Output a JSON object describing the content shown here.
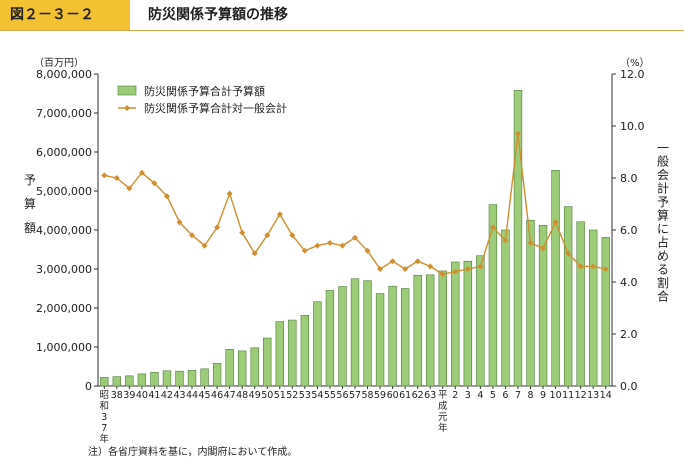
{
  "header": {
    "figure_number": "図２－３－２",
    "title": "防災関係予算額の推移"
  },
  "note": "注）各省庁資料を基に，内閣府において作成。",
  "chart_data": {
    "type": "bar",
    "left_unit": "（百万円）",
    "right_unit": "（%）",
    "ylabel_left": [
      "予",
      "算",
      "額"
    ],
    "ylabel_right": "一般会計予算に占める割合",
    "ylim": [
      0,
      8000000
    ],
    "y2lim": [
      0,
      12
    ],
    "yticks": [
      "0",
      "1,000,000",
      "2,000,000",
      "3,000,000",
      "4,000,000",
      "5,000,000",
      "6,000,000",
      "7,000,000",
      "8,000,000"
    ],
    "y2ticks": [
      "0.0",
      "2.0",
      "4.0",
      "6.0",
      "8.0",
      "10.0",
      "12.0"
    ],
    "categories": [
      "昭和37年",
      "38",
      "39",
      "40",
      "41",
      "42",
      "43",
      "44",
      "45",
      "46",
      "47",
      "48",
      "49",
      "50",
      "51",
      "52",
      "53",
      "54",
      "55",
      "56",
      "57",
      "58",
      "59",
      "60",
      "61",
      "62",
      "63",
      "平成元年",
      "2",
      "3",
      "4",
      "5",
      "6",
      "7",
      "8",
      "9",
      "10",
      "11",
      "12",
      "13",
      "14"
    ],
    "grid": false,
    "legend_position": "top-left",
    "colors": {
      "bar": "#9dcc79",
      "bar_edge": "#4f7d3a",
      "line": "#cf8f2e"
    },
    "series": [
      {
        "name": "防災関係予算合計予算額",
        "type": "bar",
        "axis": "left",
        "values": [
          220000,
          240000,
          260000,
          310000,
          350000,
          390000,
          380000,
          400000,
          440000,
          580000,
          940000,
          900000,
          980000,
          1230000,
          1650000,
          1690000,
          1810000,
          2160000,
          2450000,
          2550000,
          2750000,
          2700000,
          2370000,
          2560000,
          2500000,
          2840000,
          2850000,
          2950000,
          3180000,
          3200000,
          3340000,
          4650000,
          4000000,
          7580000,
          4250000,
          4120000,
          5530000,
          4600000,
          4210000,
          4000000,
          3810000
        ]
      },
      {
        "name": "防災関係予算合計対一般会計",
        "type": "line",
        "axis": "right",
        "values": [
          8.1,
          8.0,
          7.6,
          8.2,
          7.8,
          7.3,
          6.3,
          5.8,
          5.4,
          6.1,
          7.4,
          5.9,
          5.1,
          5.8,
          6.6,
          5.8,
          5.2,
          5.4,
          5.5,
          5.4,
          5.7,
          5.2,
          4.5,
          4.8,
          4.5,
          4.8,
          4.6,
          4.3,
          4.4,
          4.5,
          4.6,
          6.1,
          5.6,
          9.7,
          5.5,
          5.3,
          6.3,
          5.1,
          4.6,
          4.6,
          4.5
        ]
      }
    ]
  }
}
